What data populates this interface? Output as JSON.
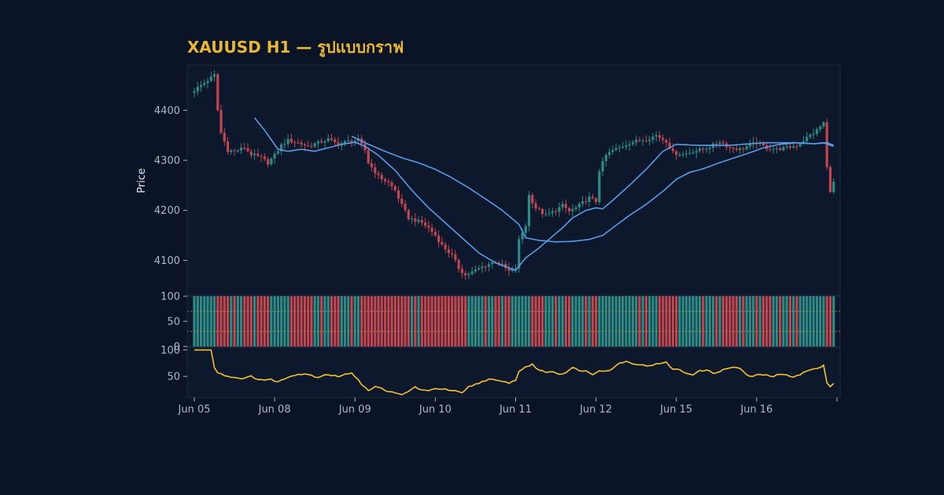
{
  "chart_data": {
    "type": "candlestick",
    "title": "XAUUSD H1 — รูปแบบกราฟ",
    "ylabel": "Price",
    "colors": {
      "background": "#0b1426",
      "panel": "#0d182c",
      "up": "#2c8c85",
      "down": "#c1464f",
      "ma": "#5a9be6",
      "oscillator": "#f2c230",
      "title": "#e7b838",
      "text": "#aeb7c6"
    },
    "grid": false,
    "x_tick_labels": [
      "Jun 05",
      "Jun 08",
      "Jun 09",
      "Jun 10",
      "Jun 11",
      "Jun 12",
      "Jun 15",
      "Jun 16"
    ],
    "x_ticks_bar_index": [
      0,
      24,
      48,
      72,
      96,
      120,
      144,
      168
    ],
    "price_panel": {
      "ylim": [
        4030,
        4490
      ],
      "yticks": [
        4100,
        4200,
        4300,
        4400
      ],
      "close_anchors": [
        [
          0,
          4440
        ],
        [
          5,
          4465
        ],
        [
          6,
          4470
        ],
        [
          7,
          4400
        ],
        [
          8,
          4355
        ],
        [
          10,
          4320
        ],
        [
          12,
          4318
        ],
        [
          15,
          4325
        ],
        [
          17,
          4312
        ],
        [
          20,
          4305
        ],
        [
          22,
          4295
        ],
        [
          24,
          4310
        ],
        [
          26,
          4330
        ],
        [
          28,
          4340
        ],
        [
          31,
          4335
        ],
        [
          34,
          4328
        ],
        [
          37,
          4335
        ],
        [
          40,
          4342
        ],
        [
          43,
          4332
        ],
        [
          46,
          4338
        ],
        [
          49,
          4340
        ],
        [
          51,
          4320
        ],
        [
          52,
          4295
        ],
        [
          55,
          4268
        ],
        [
          58,
          4255
        ],
        [
          60,
          4240
        ],
        [
          62,
          4210
        ],
        [
          64,
          4185
        ],
        [
          66,
          4180
        ],
        [
          68,
          4175
        ],
        [
          70,
          4165
        ],
        [
          72,
          4150
        ],
        [
          74,
          4130
        ],
        [
          77,
          4110
        ],
        [
          79,
          4085
        ],
        [
          81,
          4070
        ],
        [
          84,
          4080
        ],
        [
          87,
          4090
        ],
        [
          90,
          4098
        ],
        [
          92,
          4090
        ],
        [
          94,
          4078
        ],
        [
          96,
          4085
        ],
        [
          97,
          4140
        ],
        [
          99,
          4170
        ],
        [
          100,
          4230
        ],
        [
          102,
          4205
        ],
        [
          105,
          4190
        ],
        [
          108,
          4200
        ],
        [
          110,
          4210
        ],
        [
          112,
          4198
        ],
        [
          114,
          4205
        ],
        [
          116,
          4215
        ],
        [
          118,
          4225
        ],
        [
          120,
          4218
        ],
        [
          121,
          4280
        ],
        [
          123,
          4310
        ],
        [
          125,
          4320
        ],
        [
          127,
          4325
        ],
        [
          130,
          4335
        ],
        [
          132,
          4338
        ],
        [
          135,
          4342
        ],
        [
          138,
          4350
        ],
        [
          141,
          4338
        ],
        [
          143,
          4315
        ],
        [
          146,
          4312
        ],
        [
          149,
          4318
        ],
        [
          152,
          4322
        ],
        [
          155,
          4330
        ],
        [
          157,
          4338
        ],
        [
          160,
          4325
        ],
        [
          163,
          4322
        ],
        [
          166,
          4330
        ],
        [
          168,
          4335
        ],
        [
          171,
          4325
        ],
        [
          174,
          4322
        ],
        [
          177,
          4325
        ],
        [
          180,
          4330
        ],
        [
          183,
          4345
        ],
        [
          186,
          4360
        ],
        [
          188,
          4375
        ],
        [
          189,
          4285
        ],
        [
          190,
          4240
        ],
        [
          191,
          4255
        ]
      ],
      "moving_averages": [
        {
          "anchors": [
            [
              18,
              4385
            ],
            [
              21,
              4360
            ],
            [
              25,
              4322
            ],
            [
              28,
              4318
            ],
            [
              32,
              4322
            ],
            [
              36,
              4318
            ],
            [
              40,
              4325
            ],
            [
              44,
              4332
            ],
            [
              48,
              4336
            ],
            [
              51,
              4328
            ],
            [
              55,
              4310
            ],
            [
              60,
              4280
            ],
            [
              65,
              4240
            ],
            [
              70,
              4205
            ],
            [
              75,
              4175
            ],
            [
              80,
              4145
            ],
            [
              85,
              4115
            ],
            [
              90,
              4095
            ],
            [
              94,
              4085
            ],
            [
              96,
              4080
            ],
            [
              99,
              4105
            ],
            [
              103,
              4125
            ],
            [
              107,
              4148
            ],
            [
              110,
              4165
            ],
            [
              113,
              4185
            ],
            [
              117,
              4200
            ],
            [
              120,
              4205
            ],
            [
              122,
              4203
            ],
            [
              125,
              4220
            ],
            [
              130,
              4250
            ],
            [
              135,
              4282
            ],
            [
              140,
              4318
            ],
            [
              144,
              4332
            ],
            [
              150,
              4330
            ],
            [
              160,
              4330
            ],
            [
              170,
              4335
            ],
            [
              180,
              4335
            ],
            [
              185,
              4333
            ],
            [
              188,
              4335
            ],
            [
              191,
              4328
            ]
          ]
        },
        {
          "anchors": [
            [
              47,
              4348
            ],
            [
              52,
              4332
            ],
            [
              57,
              4318
            ],
            [
              62,
              4305
            ],
            [
              67,
              4295
            ],
            [
              72,
              4282
            ],
            [
              77,
              4265
            ],
            [
              82,
              4245
            ],
            [
              87,
              4223
            ],
            [
              92,
              4200
            ],
            [
              97,
              4172
            ],
            [
              99,
              4145
            ],
            [
              103,
              4140
            ],
            [
              108,
              4137
            ],
            [
              113,
              4138
            ],
            [
              118,
              4142
            ],
            [
              122,
              4150
            ],
            [
              126,
              4170
            ],
            [
              130,
              4190
            ],
            [
              135,
              4212
            ],
            [
              140,
              4238
            ],
            [
              144,
              4262
            ],
            [
              148,
              4276
            ],
            [
              152,
              4283
            ],
            [
              156,
              4293
            ],
            [
              160,
              4302
            ],
            [
              165,
              4313
            ],
            [
              170,
              4325
            ],
            [
              175,
              4332
            ],
            [
              180,
              4335
            ],
            [
              185,
              4333
            ],
            [
              189,
              4335
            ],
            [
              191,
              4330
            ]
          ]
        }
      ]
    },
    "bars_panel": {
      "ylim": [
        0,
        100
      ],
      "yticks": [
        0,
        50,
        100
      ],
      "reference_lines": [
        70,
        30
      ]
    },
    "oscillator_panel": {
      "ylim": [
        10,
        105
      ],
      "yticks": [
        50,
        100
      ],
      "anchors": [
        [
          0,
          100
        ],
        [
          5,
          100
        ],
        [
          6,
          68
        ],
        [
          7,
          57
        ],
        [
          8,
          55
        ],
        [
          10,
          50
        ],
        [
          12,
          48
        ],
        [
          15,
          46
        ],
        [
          17,
          50
        ],
        [
          19,
          45
        ],
        [
          21,
          43
        ],
        [
          23,
          44
        ],
        [
          25,
          40
        ],
        [
          27,
          45
        ],
        [
          29,
          52
        ],
        [
          31,
          54
        ],
        [
          33,
          55
        ],
        [
          35,
          52
        ],
        [
          37,
          48
        ],
        [
          39,
          54
        ],
        [
          41,
          52
        ],
        [
          43,
          50
        ],
        [
          45,
          54
        ],
        [
          47,
          55
        ],
        [
          49,
          45
        ],
        [
          50,
          35
        ],
        [
          52,
          24
        ],
        [
          54,
          30
        ],
        [
          56,
          27
        ],
        [
          58,
          22
        ],
        [
          60,
          18
        ],
        [
          62,
          15
        ],
        [
          64,
          22
        ],
        [
          66,
          30
        ],
        [
          68,
          24
        ],
        [
          70,
          22
        ],
        [
          72,
          28
        ],
        [
          74,
          26
        ],
        [
          76,
          24
        ],
        [
          78,
          22
        ],
        [
          80,
          18
        ],
        [
          82,
          30
        ],
        [
          84,
          35
        ],
        [
          86,
          40
        ],
        [
          88,
          45
        ],
        [
          90,
          42
        ],
        [
          92,
          40
        ],
        [
          94,
          38
        ],
        [
          96,
          42
        ],
        [
          97,
          60
        ],
        [
          99,
          68
        ],
        [
          101,
          72
        ],
        [
          103,
          62
        ],
        [
          105,
          58
        ],
        [
          107,
          60
        ],
        [
          109,
          54
        ],
        [
          111,
          58
        ],
        [
          113,
          66
        ],
        [
          115,
          62
        ],
        [
          117,
          60
        ],
        [
          119,
          54
        ],
        [
          121,
          62
        ],
        [
          123,
          60
        ],
        [
          125,
          64
        ],
        [
          127,
          76
        ],
        [
          129,
          78
        ],
        [
          131,
          75
        ],
        [
          133,
          72
        ],
        [
          135,
          70
        ],
        [
          137,
          72
        ],
        [
          139,
          74
        ],
        [
          141,
          76
        ],
        [
          143,
          64
        ],
        [
          145,
          62
        ],
        [
          147,
          56
        ],
        [
          149,
          54
        ],
        [
          151,
          60
        ],
        [
          153,
          62
        ],
        [
          155,
          56
        ],
        [
          157,
          60
        ],
        [
          159,
          64
        ],
        [
          161,
          68
        ],
        [
          163,
          65
        ],
        [
          165,
          52
        ],
        [
          167,
          50
        ],
        [
          169,
          54
        ],
        [
          171,
          52
        ],
        [
          173,
          50
        ],
        [
          175,
          54
        ],
        [
          177,
          52
        ],
        [
          179,
          50
        ],
        [
          181,
          54
        ],
        [
          183,
          60
        ],
        [
          185,
          64
        ],
        [
          187,
          66
        ],
        [
          188,
          70
        ],
        [
          189,
          38
        ],
        [
          190,
          32
        ],
        [
          191,
          38
        ]
      ]
    }
  }
}
